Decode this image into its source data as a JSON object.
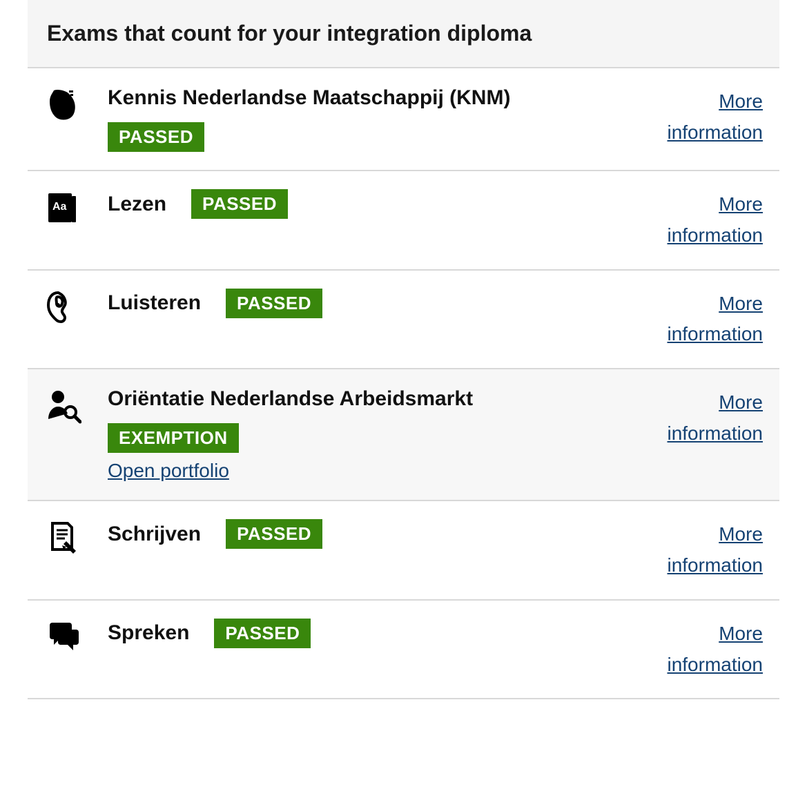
{
  "header": {
    "title": "Exams that count for your integration diploma"
  },
  "colors": {
    "badge_bg": "#39870c",
    "badge_text": "#ffffff",
    "link": "#154273",
    "divider": "#d8d8d8",
    "alt_row_bg": "#f7f7f7"
  },
  "more_info_label": "More information",
  "exams": [
    {
      "icon": "map-netherlands-icon",
      "title": "Kennis Nederlandse Maatschappij (KNM)",
      "status": "PASSED",
      "status_below": true,
      "alt": false
    },
    {
      "icon": "book-aa-icon",
      "title": "Lezen",
      "status": "PASSED",
      "status_below": false,
      "alt": false
    },
    {
      "icon": "ear-icon",
      "title": "Luisteren",
      "status": "PASSED",
      "status_below": false,
      "alt": false
    },
    {
      "icon": "person-search-icon",
      "title": "Oriëntatie Nederlandse Arbeidsmarkt",
      "status": "EXEMPTION",
      "status_below": true,
      "portfolio_label": "Open portfolio",
      "alt": true
    },
    {
      "icon": "document-pencil-icon",
      "title": "Schrijven",
      "status": "PASSED",
      "status_below": false,
      "alt": false
    },
    {
      "icon": "speech-bubbles-icon",
      "title": "Spreken",
      "status": "PASSED",
      "status_below": false,
      "alt": false
    }
  ]
}
